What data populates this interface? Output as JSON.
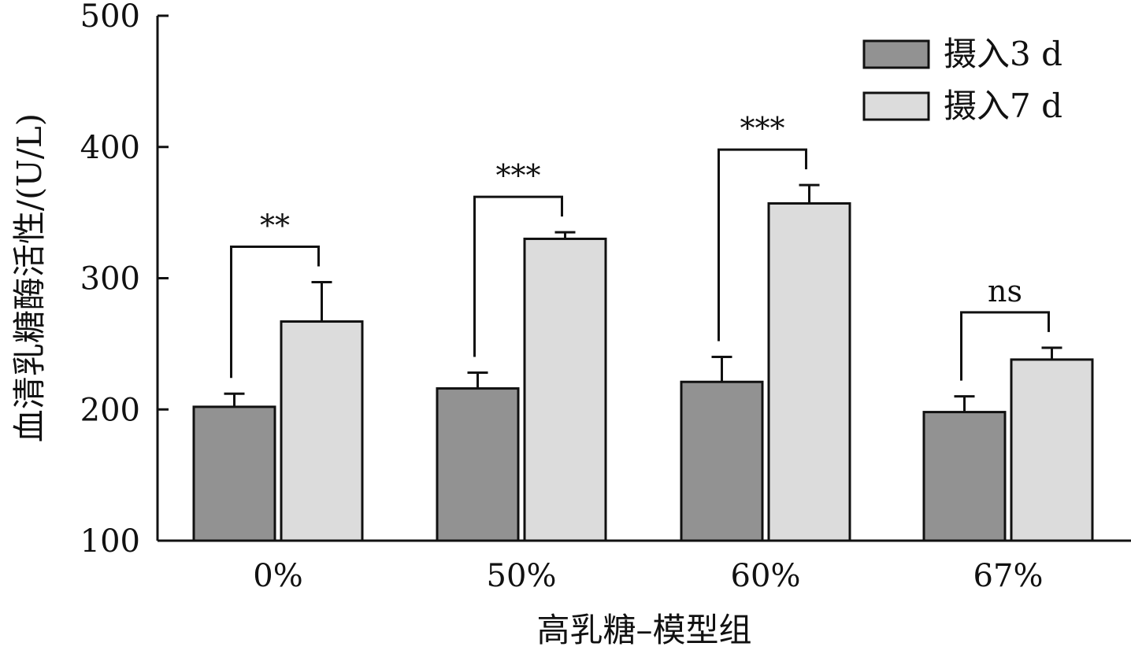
{
  "chart_data": {
    "type": "bar",
    "xlabel": "高乳糖–模型组",
    "ylabel": "血清乳糖酶活性/(U/L)",
    "ylim": [
      100,
      500
    ],
    "yticks": [
      100,
      200,
      300,
      400,
      500
    ],
    "categories": [
      "0%",
      "50%",
      "60%",
      "67%"
    ],
    "series": [
      {
        "name": "摄入3 d",
        "values": [
          202,
          216,
          221,
          198
        ],
        "errors": [
          10,
          12,
          19,
          12
        ],
        "color": "#929292"
      },
      {
        "name": "摄入7 d",
        "values": [
          267,
          330,
          357,
          238
        ],
        "errors": [
          30,
          5,
          14,
          9
        ],
        "color": "#dcdcdc"
      }
    ],
    "significance": [
      "**",
      "***",
      "***",
      "ns"
    ],
    "legend_position": "top-right",
    "grid": false
  }
}
